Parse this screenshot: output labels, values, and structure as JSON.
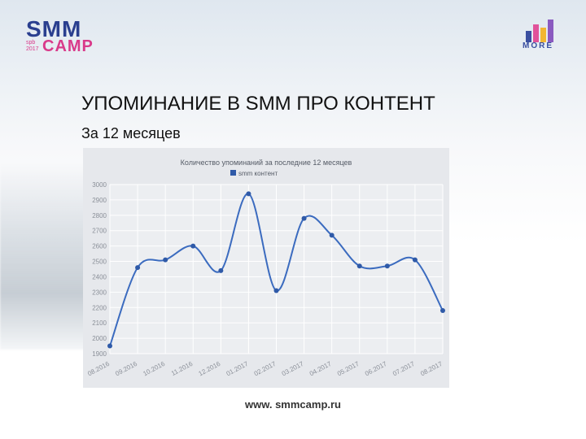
{
  "header": {
    "left_logo": {
      "line1": "SMM",
      "line2": "CAMP",
      "sub": "spb 2017"
    },
    "right_logo": {
      "text": "MORE"
    }
  },
  "slide": {
    "title": "УПОМИНАНИЕ В SMM ПРО КОНТЕНТ",
    "subtitle": "За 12 месяцев"
  },
  "footer": {
    "url": "www. smmcamp.ru"
  },
  "colors": {
    "line": "#3b6bbf",
    "point": "#2f5aa8",
    "logo_blue": "#2a3f8f",
    "logo_pink": "#d93a8a"
  },
  "chart_data": {
    "type": "line",
    "title": "Количество упоминаний за последние 12 месяцев",
    "legend_position": "top",
    "grid": true,
    "categories": [
      "08.2016",
      "09.2016",
      "10.2016",
      "11.2016",
      "12.2016",
      "01.2017",
      "02.2017",
      "03.2017",
      "04.2017",
      "05.2017",
      "06.2017",
      "07.2017",
      "08.2017"
    ],
    "series": [
      {
        "name": "smm контент",
        "values": [
          1950,
          2460,
          2510,
          2600,
          2440,
          2940,
          2310,
          2780,
          2670,
          2470,
          2470,
          2510,
          2180
        ]
      }
    ],
    "ylim": [
      1900,
      3000
    ],
    "yticks": [
      1900,
      2000,
      2100,
      2200,
      2300,
      2400,
      2500,
      2600,
      2700,
      2800,
      2900,
      3000
    ]
  }
}
